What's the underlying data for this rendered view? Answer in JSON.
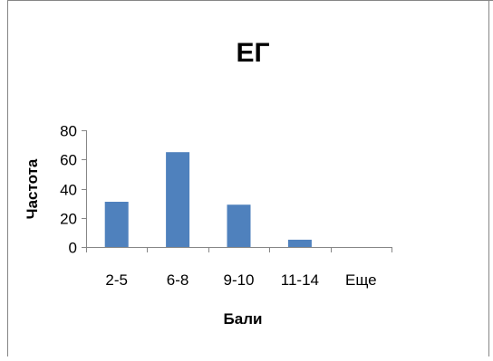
{
  "chart_data": {
    "type": "bar",
    "title": "ЕГ",
    "xlabel": "Бали",
    "ylabel": "Частота",
    "categories": [
      "2-5",
      "6-8",
      "9-10",
      "11-14",
      "Еще"
    ],
    "values": [
      31,
      65,
      29,
      5,
      0
    ],
    "ylim": [
      0,
      80
    ],
    "yticks": [
      0,
      20,
      40,
      60,
      80
    ],
    "grid": false,
    "legend": "none"
  },
  "colors": {
    "bar": "#4f81bd",
    "axis": "#868686",
    "text": "#000000",
    "frame": "#868686"
  }
}
